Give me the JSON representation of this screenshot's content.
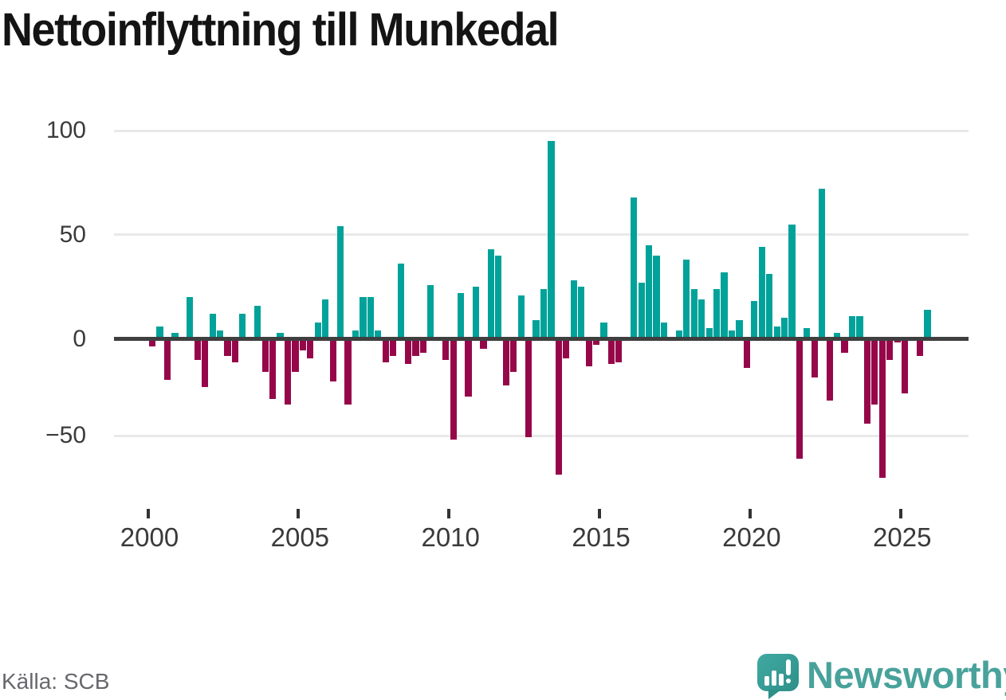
{
  "title": "Nettoinflyttning till Munkedal",
  "source": "Källa: SCB",
  "branding": {
    "name": "Newsworthy",
    "mark": "speech-bubble-bar-chart-exclamation"
  },
  "colors": {
    "positive": "#00a29a",
    "negative": "#96074a",
    "grid": "#e9e9e9",
    "zero_axis": "#3f3f3f",
    "tick_label": "#3a3a3a",
    "title_text": "#141414",
    "source_text": "#67676d",
    "brand_teal": "#48a29b"
  },
  "chart_data": {
    "type": "bar",
    "title": "Nettoinflyttning till Munkedal",
    "xlabel": "",
    "ylabel": "",
    "frequency": "quarterly",
    "start_year": 2000,
    "ylim": [
      -75,
      105
    ],
    "grid": true,
    "y_ticks": [
      {
        "value": 100,
        "label": "100"
      },
      {
        "value": 50,
        "label": "50"
      },
      {
        "value": 0,
        "label": "0"
      },
      {
        "value": -50,
        "label": "−50"
      }
    ],
    "x_ticks": [
      {
        "year": 2000,
        "label": "2000"
      },
      {
        "year": 2005,
        "label": "2005"
      },
      {
        "year": 2010,
        "label": "2010"
      },
      {
        "year": 2015,
        "label": "2015"
      },
      {
        "year": 2020,
        "label": "2020"
      },
      {
        "year": 2025,
        "label": "2025"
      }
    ],
    "values": [
      -4,
      6,
      -21,
      3,
      0,
      20,
      -11,
      -25,
      12,
      4,
      -9,
      -12,
      12,
      1,
      16,
      -17,
      -31,
      3,
      -34,
      -17,
      -6,
      -10,
      8,
      19,
      -22,
      54,
      -34,
      4,
      20,
      20,
      4,
      -12,
      -9,
      36,
      -13,
      -9,
      -7,
      26,
      1,
      -11,
      -52,
      22,
      -30,
      25,
      -5,
      43,
      40,
      -24,
      -17,
      21,
      -51,
      9,
      24,
      95,
      -70,
      -10,
      28,
      25,
      -14,
      -3,
      8,
      -13,
      -12,
      0,
      68,
      27,
      45,
      40,
      8,
      0,
      4,
      38,
      24,
      19,
      5,
      24,
      32,
      4,
      9,
      -15,
      18,
      44,
      31,
      6,
      10,
      55,
      -62,
      5,
      -20,
      72,
      -32,
      3,
      -7,
      11,
      11,
      -44,
      -34,
      -72,
      -11,
      -2,
      -28,
      0,
      -9,
      14
    ]
  }
}
